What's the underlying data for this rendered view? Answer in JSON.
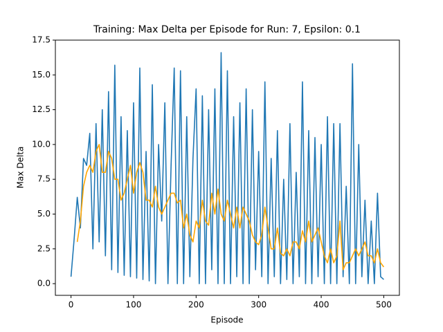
{
  "chart_data": {
    "type": "line",
    "title": "Training: Max Delta per Episode for Run: 7, Epsilon: 0.1",
    "x_label": "Episode",
    "y_label": "Max Delta",
    "xlim": [
      -25,
      525
    ],
    "xticks": [
      0,
      100,
      200,
      300,
      400,
      500
    ],
    "ylim": [
      -0.84,
      17.5
    ],
    "yticks": [
      {
        "value": 0,
        "label": "0.0"
      },
      2.5,
      {
        "value": 5,
        "label": "5.0"
      },
      7.5,
      {
        "value": 10,
        "label": "10.0"
      },
      12.5,
      {
        "value": 15,
        "label": "15.0"
      },
      17.5
    ],
    "series": [
      {
        "color": "#1f77b4",
        "x": [
          0,
          5,
          10,
          15,
          20,
          25,
          30,
          35,
          40,
          45,
          50,
          55,
          60,
          65,
          70,
          75,
          80,
          85,
          90,
          95,
          100,
          105,
          110,
          115,
          120,
          125,
          130,
          135,
          140,
          145,
          150,
          155,
          160,
          165,
          170,
          175,
          180,
          185,
          190,
          195,
          200,
          205,
          210,
          215,
          220,
          225,
          230,
          235,
          240,
          245,
          250,
          255,
          260,
          265,
          270,
          275,
          280,
          285,
          290,
          295,
          300,
          305,
          310,
          315,
          320,
          325,
          330,
          335,
          340,
          345,
          350,
          355,
          360,
          365,
          370,
          375,
          380,
          385,
          390,
          395,
          400,
          405,
          410,
          415,
          420,
          425,
          430,
          435,
          440,
          445,
          450,
          455,
          460,
          465,
          470,
          475,
          480,
          485,
          490,
          495,
          500
        ],
        "values": [
          0.5,
          3.2,
          6.2,
          4.0,
          9.0,
          8.5,
          10.8,
          2.5,
          11.5,
          3.0,
          12.5,
          2.0,
          13.8,
          1.0,
          15.7,
          0.8,
          12.0,
          0.6,
          11.0,
          0.5,
          13.0,
          0.4,
          15.5,
          0.3,
          9.5,
          0.2,
          14.3,
          0.0,
          10.0,
          4.5,
          13.0,
          0.0,
          8.5,
          15.5,
          0.0,
          15.3,
          0.0,
          12.0,
          0.5,
          9.0,
          14.0,
          0.0,
          13.5,
          0.0,
          12.5,
          1.0,
          14.0,
          0.0,
          16.6,
          0.0,
          15.3,
          0.0,
          12.0,
          0.5,
          13.0,
          0.0,
          14.0,
          0.0,
          12.5,
          1.0,
          9.5,
          0.5,
          14.5,
          0.0,
          9.0,
          0.5,
          11.0,
          0.0,
          7.5,
          0.3,
          11.5,
          0.0,
          8.0,
          0.5,
          14.5,
          0.0,
          11.0,
          0.0,
          10.5,
          0.5,
          10.0,
          0.0,
          12.0,
          0.0,
          11.5,
          0.0,
          11.5,
          0.5,
          7.0,
          0.0,
          15.8,
          0.0,
          10.0,
          0.5,
          6.0,
          0.0,
          4.5,
          0.0,
          6.5,
          0.5,
          0.3
        ]
      },
      {
        "color": "#ffa500",
        "x": [
          10,
          15,
          20,
          25,
          30,
          35,
          40,
          45,
          50,
          55,
          60,
          65,
          70,
          75,
          80,
          85,
          90,
          95,
          100,
          105,
          110,
          115,
          120,
          125,
          130,
          135,
          140,
          145,
          150,
          155,
          160,
          165,
          170,
          175,
          180,
          185,
          190,
          195,
          200,
          205,
          210,
          215,
          220,
          225,
          230,
          235,
          240,
          245,
          250,
          255,
          260,
          265,
          270,
          275,
          280,
          285,
          290,
          295,
          300,
          305,
          310,
          315,
          320,
          325,
          330,
          335,
          340,
          345,
          350,
          355,
          360,
          365,
          370,
          375,
          380,
          385,
          390,
          395,
          400,
          405,
          410,
          415,
          420,
          425,
          430,
          435,
          440,
          445,
          450,
          455,
          460,
          465,
          470,
          475,
          480,
          485,
          490,
          495,
          500
        ],
        "values": [
          3.0,
          4.5,
          7.0,
          8.0,
          8.5,
          8.0,
          9.5,
          10.0,
          8.0,
          8.0,
          9.5,
          9.0,
          7.5,
          7.5,
          6.0,
          6.5,
          7.5,
          8.5,
          6.5,
          8.0,
          8.7,
          8.0,
          6.0,
          6.0,
          5.5,
          7.0,
          5.5,
          5.0,
          5.5,
          6.0,
          6.5,
          6.5,
          5.8,
          6.0,
          4.0,
          5.0,
          3.5,
          3.0,
          4.5,
          4.0,
          6.0,
          4.5,
          4.2,
          6.5,
          5.0,
          6.8,
          5.0,
          4.5,
          6.0,
          5.0,
          4.0,
          5.5,
          4.0,
          5.5,
          5.0,
          4.5,
          3.5,
          3.0,
          2.8,
          3.5,
          5.5,
          4.0,
          2.5,
          2.5,
          4.0,
          2.2,
          2.0,
          2.5,
          2.0,
          3.0,
          3.0,
          2.5,
          3.8,
          3.0,
          4.5,
          3.0,
          3.5,
          4.0,
          3.0,
          2.0,
          1.5,
          2.5,
          1.5,
          2.0,
          4.5,
          1.0,
          1.5,
          1.5,
          2.0,
          2.5,
          2.0,
          2.5,
          3.0,
          2.0,
          2.0,
          1.5,
          2.5,
          1.5,
          1.2
        ]
      }
    ]
  }
}
